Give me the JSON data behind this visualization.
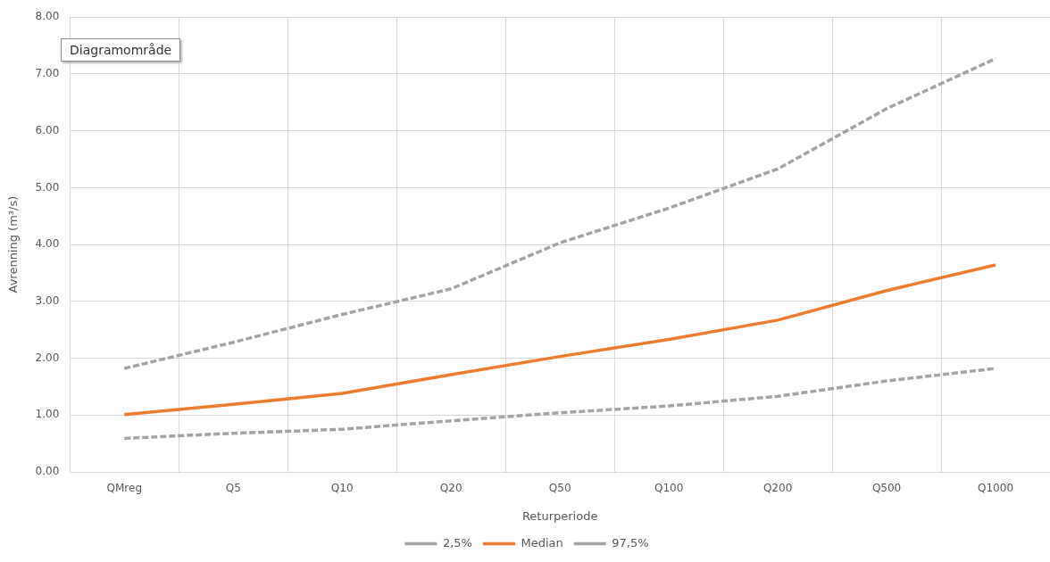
{
  "chart_data": {
    "type": "line",
    "categories": [
      "QMreg",
      "Q5",
      "Q10",
      "Q20",
      "Q50",
      "Q100",
      "Q200",
      "Q500",
      "Q1000"
    ],
    "xlabel": "Returperiode",
    "ylabel": "Avrenning (m³/s)",
    "ylim": [
      0,
      8
    ],
    "yticks": [
      {
        "value": 0,
        "label": "0.00"
      },
      {
        "value": 1,
        "label": "1.00"
      },
      {
        "value": 2,
        "label": "2.00"
      },
      {
        "value": 3,
        "label": "3.00"
      },
      {
        "value": 4,
        "label": "4.00"
      },
      {
        "value": 5,
        "label": "5.00"
      },
      {
        "value": 6,
        "label": "6.00"
      },
      {
        "value": 7,
        "label": "7.00"
      },
      {
        "value": 8,
        "label": "8.00"
      }
    ],
    "series": [
      {
        "name": "2,5%",
        "color": "#a5a5a5",
        "line_style": "dashed",
        "values": [
          0.59,
          0.68,
          0.75,
          0.9,
          1.04,
          1.16,
          1.33,
          1.6,
          1.82
        ]
      },
      {
        "name": "Median",
        "color": "#ed7d31",
        "line_style": "solid",
        "values": [
          1.01,
          1.19,
          1.38,
          1.71,
          2.03,
          2.33,
          2.67,
          3.19,
          3.64
        ]
      },
      {
        "name": "97,5%",
        "color": "#a5a5a5",
        "line_style": "dashed",
        "values": [
          1.82,
          2.28,
          2.77,
          3.22,
          4.03,
          4.64,
          5.33,
          6.39,
          7.27
        ]
      }
    ],
    "grid": true,
    "legend": "bottom",
    "marker": "none",
    "annotations": [
      "Diagramområde"
    ]
  }
}
